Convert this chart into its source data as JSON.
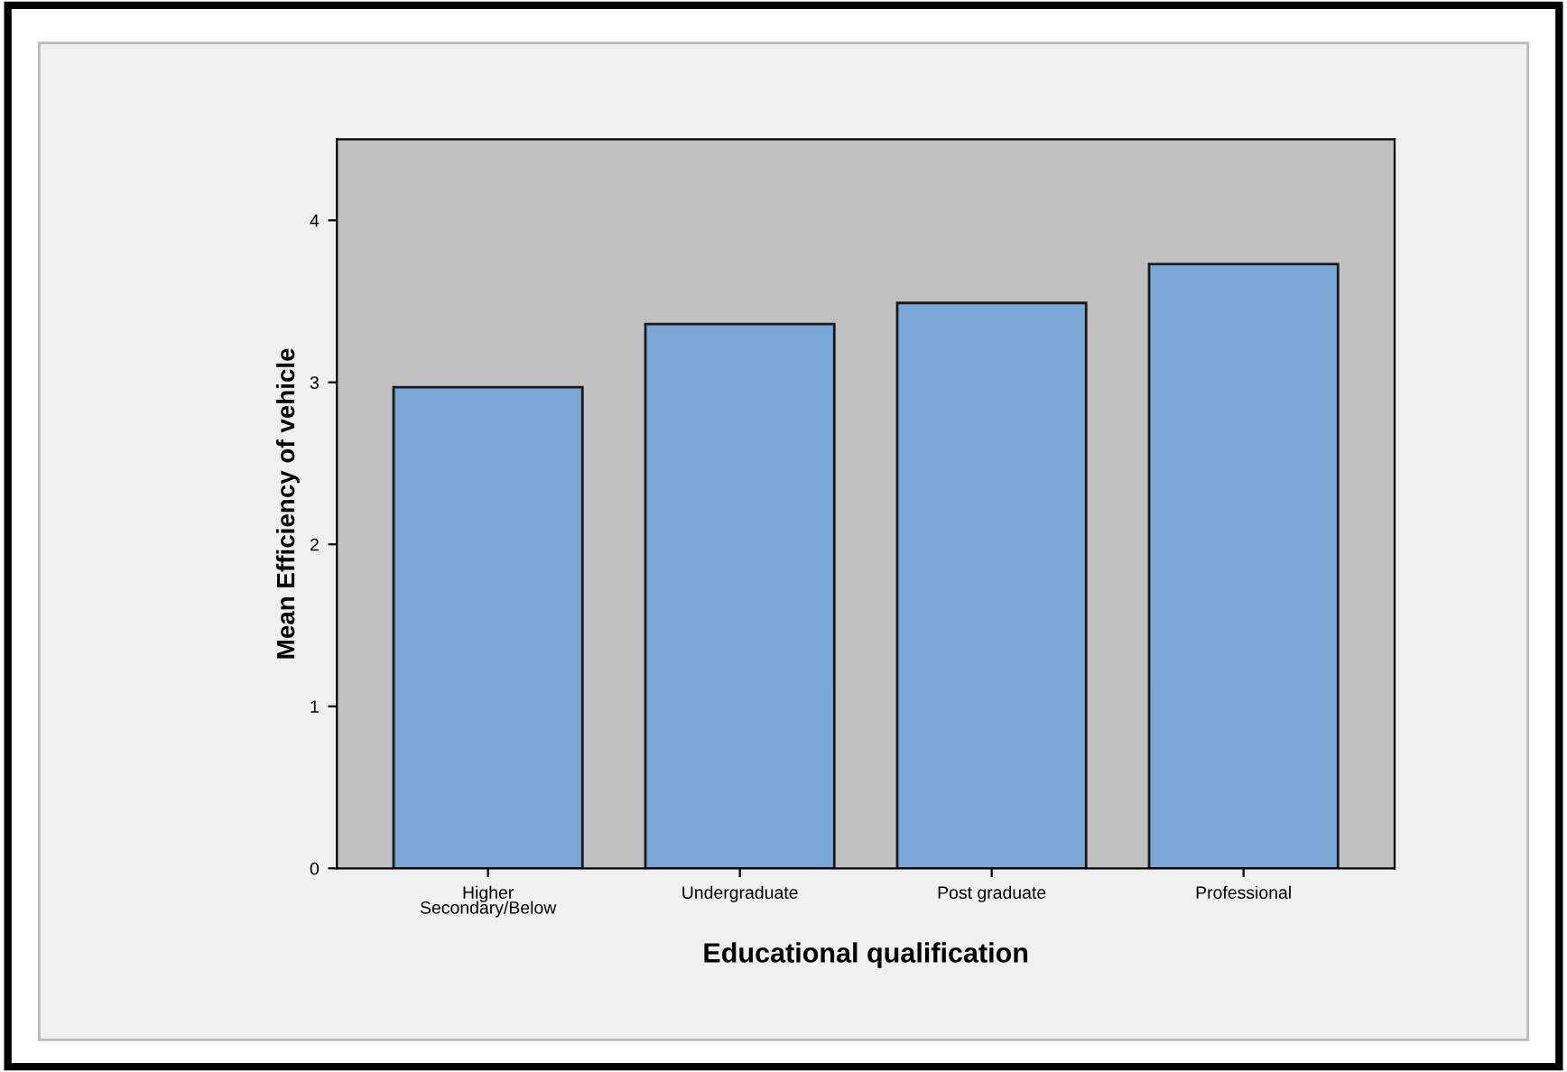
{
  "chart_data": {
    "type": "bar",
    "categories": [
      "Higher\nSecondary/Below",
      "Undergraduate",
      "Post graduate",
      "Professional"
    ],
    "values": [
      2.97,
      3.36,
      3.49,
      3.73
    ],
    "color": "#7aa8d6",
    "xlabel": "Educational qualification",
    "ylabel": "Mean Efficiency of vehicle",
    "ylim": [
      0,
      4.5
    ],
    "yticks": [
      0,
      1,
      2,
      3,
      4
    ],
    "grid": false
  }
}
